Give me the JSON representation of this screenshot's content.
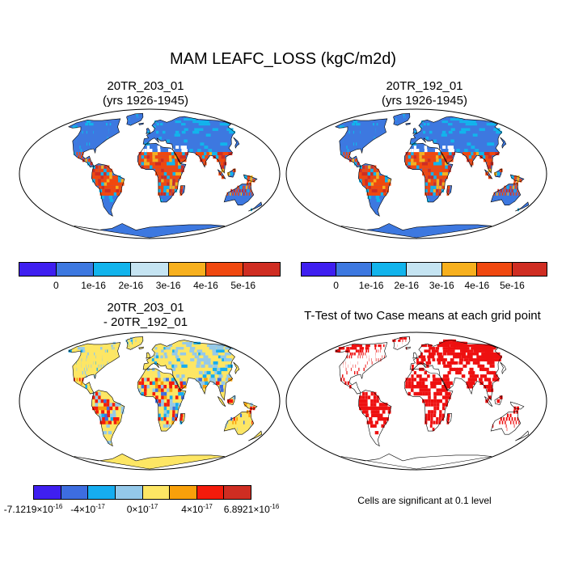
{
  "main_title": "MAM LEAFC_LOSS (kgC/m2d)",
  "panels": [
    {
      "title_line1": "20TR_203_01",
      "title_line2": "(yrs 1926-1945)",
      "style": "case"
    },
    {
      "title_line1": "20TR_192_01",
      "title_line2": "(yrs 1926-1945)",
      "style": "case"
    },
    {
      "title_line1": "20TR_203_01",
      "title_line2": "- 20TR_192_01",
      "style": "diff"
    },
    {
      "title_line1": "T-Test of two Case means at each grid point",
      "title_line2": "",
      "style": "ttest"
    }
  ],
  "colorbars": {
    "case": {
      "colors": [
        "#3f1ff0",
        "#3d78e0",
        "#12b4ec",
        "#c5e4f2",
        "#f7b01e",
        "#f0480f",
        "#cf2d22"
      ],
      "labels": [
        "0",
        "1e-16",
        "2e-16",
        "3e-16",
        "4e-16",
        "5e-16"
      ]
    },
    "diff": {
      "colors": [
        "#3f1ff0",
        "#3d6de0",
        "#16adf0",
        "#94c9ea",
        "#fde664",
        "#f8a00a",
        "#f31b0b",
        "#cf2d22"
      ],
      "labels": [
        {
          "mant": "-7.1219",
          "exp": "-16"
        },
        {
          "mant": "-4",
          "exp": "-17"
        },
        {
          "mant": "0",
          "exp": "-17"
        },
        {
          "mant": "4",
          "exp": "-17"
        },
        {
          "mant": "6.8921",
          "exp": "-16"
        }
      ]
    }
  },
  "significance_note": "Cells are significant at 0.1 level",
  "map_colors": {
    "case_base": "#3d78e0",
    "case_tropics": "#f0480f",
    "case_mid": "#12b4ec",
    "diff_base": "#fde664",
    "diff_mid": "#94c9ea",
    "ttest_red": "#ee1010",
    "white": "#ffffff"
  }
}
